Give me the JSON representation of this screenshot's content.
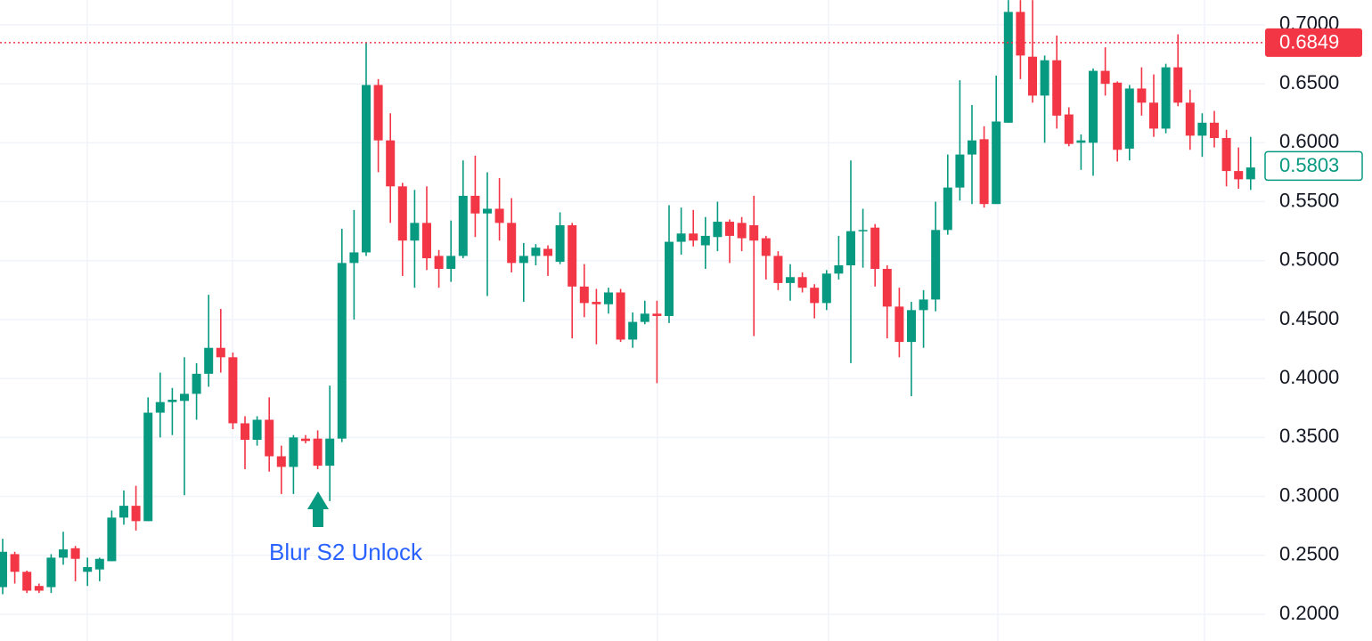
{
  "chart_data": {
    "type": "candlestick",
    "up_color": "#089981",
    "down_color": "#f23645",
    "grid": true,
    "ylim": [
      0.1773,
      0.7211
    ],
    "yticks": [
      {
        "value": 0.2,
        "label": "0.2000"
      },
      {
        "value": 0.25,
        "label": "0.2500"
      },
      {
        "value": 0.3,
        "label": "0.3000"
      },
      {
        "value": 0.35,
        "label": "0.3500"
      },
      {
        "value": 0.4,
        "label": "0.4000"
      },
      {
        "value": 0.45,
        "label": "0.4500"
      },
      {
        "value": 0.5,
        "label": "0.5000"
      },
      {
        "value": 0.55,
        "label": "0.5500"
      },
      {
        "value": 0.6,
        "label": "0.6000"
      },
      {
        "value": 0.65,
        "label": "0.6500"
      },
      {
        "value": 0.7,
        "label": "0.7000"
      }
    ],
    "open": [
      0.223,
      0.251,
      0.236,
      0.224,
      0.223,
      0.248,
      0.256,
      0.236,
      0.238,
      0.245,
      0.282,
      0.292,
      0.279,
      0.371,
      0.38,
      0.381,
      0.387,
      0.404,
      0.426,
      0.418,
      0.362,
      0.348,
      0.365,
      0.334,
      0.325,
      0.349,
      0.349,
      0.326,
      0.349,
      0.498,
      0.507,
      0.649,
      0.602,
      0.563,
      0.517,
      0.532,
      0.504,
      0.493,
      0.504,
      0.555,
      0.54,
      0.544,
      0.532,
      0.498,
      0.504,
      0.51,
      0.499,
      0.53,
      0.478,
      0.465,
      0.463,
      0.473,
      0.433,
      0.448,
      0.455,
      0.453,
      0.516,
      0.523,
      0.513,
      0.52,
      0.533,
      0.532,
      0.53,
      0.519,
      0.504,
      0.481,
      0.486,
      0.477,
      0.464,
      0.489,
      0.496,
      0.525,
      0.528,
      0.493,
      0.461,
      0.431,
      0.458,
      0.467,
      0.526,
      0.562,
      0.59,
      0.603,
      0.548,
      0.617,
      0.711,
      0.673,
      0.64,
      0.67,
      0.624,
      0.6,
      0.6,
      0.661,
      0.651,
      0.595,
      0.646,
      0.634,
      0.612,
      0.664,
      0.634,
      0.606,
      0.617,
      0.604,
      0.576,
      0.569
    ],
    "high": [
      0.264,
      0.253,
      0.237,
      0.226,
      0.251,
      0.27,
      0.258,
      0.248,
      0.248,
      0.288,
      0.305,
      0.309,
      0.384,
      0.405,
      0.392,
      0.418,
      0.413,
      0.471,
      0.459,
      0.422,
      0.368,
      0.368,
      0.384,
      0.343,
      0.352,
      0.352,
      0.356,
      0.394,
      0.527,
      0.543,
      0.685,
      0.654,
      0.625,
      0.566,
      0.56,
      0.563,
      0.509,
      0.534,
      0.585,
      0.589,
      0.575,
      0.57,
      0.553,
      0.515,
      0.514,
      0.513,
      0.541,
      0.532,
      0.497,
      0.476,
      0.477,
      0.476,
      0.456,
      0.466,
      0.466,
      0.547,
      0.545,
      0.543,
      0.537,
      0.55,
      0.535,
      0.537,
      0.555,
      0.521,
      0.508,
      0.497,
      0.49,
      0.48,
      0.492,
      0.521,
      0.585,
      0.544,
      0.531,
      0.496,
      0.477,
      0.465,
      0.475,
      0.55,
      0.59,
      0.653,
      0.632,
      0.614,
      0.657,
      0.721,
      0.721,
      0.721,
      0.674,
      0.691,
      0.63,
      0.607,
      0.663,
      0.681,
      0.652,
      0.649,
      0.664,
      0.658,
      0.667,
      0.692,
      0.645,
      0.625,
      0.627,
      0.611,
      0.596,
      0.605
    ],
    "low": [
      0.217,
      0.226,
      0.218,
      0.218,
      0.218,
      0.242,
      0.228,
      0.224,
      0.228,
      0.245,
      0.276,
      0.271,
      0.279,
      0.35,
      0.352,
      0.301,
      0.365,
      0.393,
      0.405,
      0.357,
      0.323,
      0.343,
      0.321,
      0.302,
      0.302,
      0.345,
      0.323,
      0.296,
      0.346,
      0.45,
      0.504,
      0.575,
      0.532,
      0.487,
      0.477,
      0.492,
      0.477,
      0.482,
      0.502,
      0.52,
      0.47,
      0.517,
      0.49,
      0.465,
      0.496,
      0.487,
      0.497,
      0.434,
      0.452,
      0.429,
      0.455,
      0.431,
      0.426,
      0.446,
      0.396,
      0.447,
      0.505,
      0.512,
      0.493,
      0.508,
      0.498,
      0.508,
      0.436,
      0.484,
      0.475,
      0.466,
      0.473,
      0.451,
      0.458,
      0.484,
      0.413,
      0.494,
      0.478,
      0.434,
      0.418,
      0.385,
      0.426,
      0.457,
      0.522,
      0.551,
      0.548,
      0.545,
      0.548,
      0.617,
      0.654,
      0.634,
      0.6,
      0.612,
      0.597,
      0.577,
      0.572,
      0.64,
      0.584,
      0.585,
      0.623,
      0.605,
      0.608,
      0.631,
      0.594,
      0.588,
      0.596,
      0.563,
      0.561,
      0.56
    ],
    "close": [
      0.253,
      0.236,
      0.22,
      0.22,
      0.248,
      0.255,
      0.247,
      0.24,
      0.247,
      0.282,
      0.292,
      0.279,
      0.371,
      0.38,
      0.382,
      0.387,
      0.404,
      0.426,
      0.418,
      0.362,
      0.348,
      0.365,
      0.334,
      0.325,
      0.35,
      0.347,
      0.326,
      0.349,
      0.498,
      0.507,
      0.649,
      0.602,
      0.563,
      0.517,
      0.532,
      0.502,
      0.493,
      0.504,
      0.555,
      0.54,
      0.544,
      0.532,
      0.498,
      0.504,
      0.511,
      0.504,
      0.53,
      0.478,
      0.464,
      0.463,
      0.473,
      0.433,
      0.448,
      0.455,
      0.453,
      0.516,
      0.523,
      0.517,
      0.521,
      0.533,
      0.521,
      0.519,
      0.517,
      0.504,
      0.481,
      0.486,
      0.477,
      0.464,
      0.489,
      0.496,
      0.525,
      0.526,
      0.493,
      0.461,
      0.431,
      0.458,
      0.467,
      0.526,
      0.562,
      0.59,
      0.602,
      0.548,
      0.618,
      0.711,
      0.674,
      0.64,
      0.67,
      0.623,
      0.599,
      0.602,
      0.661,
      0.65,
      0.594,
      0.646,
      0.634,
      0.612,
      0.664,
      0.634,
      0.606,
      0.617,
      0.604,
      0.576,
      0.569,
      0.579
    ],
    "price_lines": [
      {
        "value": 0.6849,
        "label": "0.6849",
        "color": "#f23645",
        "style": "filled",
        "dotted": true
      },
      {
        "value": 0.5803,
        "label": "0.5803",
        "color": "#089981",
        "style": "outlined",
        "dotted": false
      }
    ],
    "annotation": "Blur S2 Unlock",
    "annotation_color": "#2962ff"
  }
}
